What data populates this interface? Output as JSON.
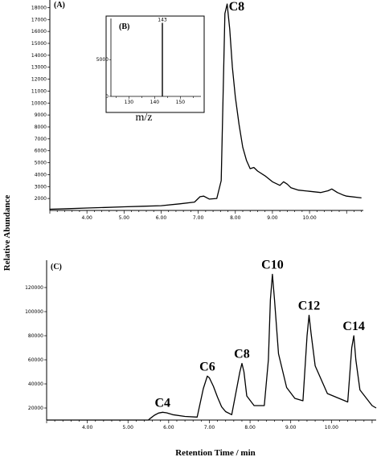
{
  "chart_data": [
    {
      "panel": "(A)",
      "type": "line",
      "xlim": [
        3.0,
        11.45
      ],
      "ylim": [
        1000,
        18500
      ],
      "xticks": [
        "4.00",
        "5.00",
        "6.00",
        "7.00",
        "8.00",
        "9.00",
        "10.00"
      ],
      "yticks": [
        "2000",
        "3000",
        "4000",
        "5000",
        "6000",
        "7000",
        "8000",
        "9000",
        "10000",
        "11000",
        "12000",
        "13000",
        "14000",
        "15000",
        "16000",
        "17000",
        "18000"
      ],
      "peak_label": "C8",
      "series": [
        {
          "x": [
            3.0,
            3.5,
            4.0,
            4.5,
            5.0,
            5.5,
            6.0,
            6.5,
            6.9,
            7.05,
            7.15,
            7.3,
            7.5,
            7.62,
            7.68,
            7.72,
            7.78,
            7.85,
            7.92,
            8.0,
            8.1,
            8.2,
            8.3,
            8.4,
            8.5,
            8.6,
            8.8,
            9.0,
            9.2,
            9.3,
            9.4,
            9.5,
            9.7,
            10.0,
            10.3,
            10.5,
            10.6,
            10.75,
            10.9,
            11.0,
            11.4
          ],
          "y": [
            1100,
            1150,
            1200,
            1250,
            1300,
            1350,
            1400,
            1550,
            1700,
            2150,
            2200,
            1950,
            2000,
            3500,
            12000,
            17500,
            18300,
            16200,
            13000,
            10500,
            8200,
            6300,
            5200,
            4500,
            4600,
            4300,
            3900,
            3400,
            3100,
            3400,
            3200,
            2900,
            2700,
            2600,
            2500,
            2650,
            2800,
            2500,
            2300,
            2200,
            2050
          ]
        }
      ]
    },
    {
      "panel": "(B)",
      "type": "bar",
      "xlabel": "m/z",
      "xlim": [
        123,
        158
      ],
      "ylim": [
        0,
        10600
      ],
      "xticks": [
        "130",
        "140",
        "150"
      ],
      "yticks": [
        "0",
        "5000"
      ],
      "bars": [
        {
          "x": 143,
          "y": 10000,
          "label": "143"
        }
      ]
    },
    {
      "panel": "(C)",
      "type": "line",
      "xlim": [
        3.0,
        11.1
      ],
      "ylim": [
        10000,
        140000
      ],
      "xticks": [
        "4.00",
        "5.00",
        "6.00",
        "7.00",
        "8.00",
        "9.00",
        "10.00"
      ],
      "yticks": [
        "20000",
        "40000",
        "60000",
        "80000",
        "100000",
        "120000"
      ],
      "series": [
        {
          "x": [
            3.0,
            5.5,
            5.55,
            5.65,
            5.75,
            5.85,
            5.95,
            6.1,
            6.4,
            6.7,
            6.85,
            6.95,
            7.0,
            7.1,
            7.2,
            7.3,
            7.4,
            7.55,
            7.75,
            7.8,
            7.85,
            7.92,
            8.1,
            8.35,
            8.45,
            8.5,
            8.55,
            8.6,
            8.7,
            8.9,
            9.1,
            9.3,
            9.4,
            9.45,
            9.5,
            9.6,
            9.9,
            10.4,
            10.5,
            10.55,
            10.6,
            10.7,
            11.0,
            11.1
          ],
          "y": [
            10000,
            10000,
            11500,
            14000,
            15800,
            16500,
            16000,
            14500,
            13000,
            12500,
            36000,
            46500,
            45000,
            38000,
            29000,
            21000,
            17000,
            14500,
            50000,
            57000,
            50000,
            30000,
            22000,
            22000,
            60000,
            110000,
            131000,
            110000,
            65000,
            37000,
            28000,
            26000,
            80000,
            97000,
            82000,
            55000,
            32000,
            25000,
            70000,
            80000,
            60000,
            35000,
            22000,
            20000
          ]
        }
      ],
      "peak_labels": [
        {
          "text": "C4",
          "x": 5.85,
          "y": 16500
        },
        {
          "text": "C6",
          "x": 6.95,
          "y": 46500
        },
        {
          "text": "C8",
          "x": 7.8,
          "y": 57000
        },
        {
          "text": "C10",
          "x": 8.55,
          "y": 131000
        },
        {
          "text": "C12",
          "x": 9.45,
          "y": 97000
        },
        {
          "text": "C14",
          "x": 10.55,
          "y": 80000
        }
      ]
    }
  ],
  "shared_ylabel": "Relative Abundance",
  "shared_xlabel": "Retention Time / min"
}
